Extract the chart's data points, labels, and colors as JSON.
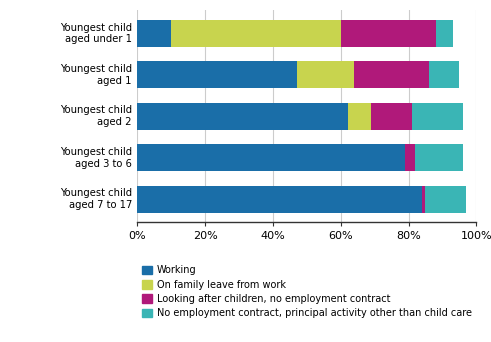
{
  "categories": [
    "Youngest child\naged under 1",
    "Youngest child\naged 1",
    "Youngest child\naged 2",
    "Youngest child\naged 3 to 6",
    "Youngest child\naged 7 to 17"
  ],
  "series": {
    "Working": [
      10,
      47,
      62,
      79,
      84
    ],
    "On family leave from work": [
      50,
      17,
      7,
      0,
      0
    ],
    "Looking after children, no employment contract": [
      28,
      22,
      12,
      3,
      1
    ],
    "No employment contract, principal activity other than child care": [
      5,
      9,
      15,
      14,
      12
    ]
  },
  "colors": {
    "Working": "#1a6ea8",
    "On family leave from work": "#c8d44e",
    "Looking after children, no employment contract": "#b0197a",
    "No employment contract, principal activity other than child care": "#3ab5b5"
  },
  "legend_labels": [
    "Working",
    "On family leave from work",
    "Looking after children, no employment contract",
    "No employment contract, principal activity other than child care"
  ],
  "xlim": [
    0,
    100
  ],
  "xticks": [
    0,
    20,
    40,
    60,
    80,
    100
  ],
  "xticklabels": [
    "0%",
    "20%",
    "40%",
    "60%",
    "80%",
    "100%"
  ],
  "background_color": "#ffffff",
  "grid_color": "#cccccc"
}
